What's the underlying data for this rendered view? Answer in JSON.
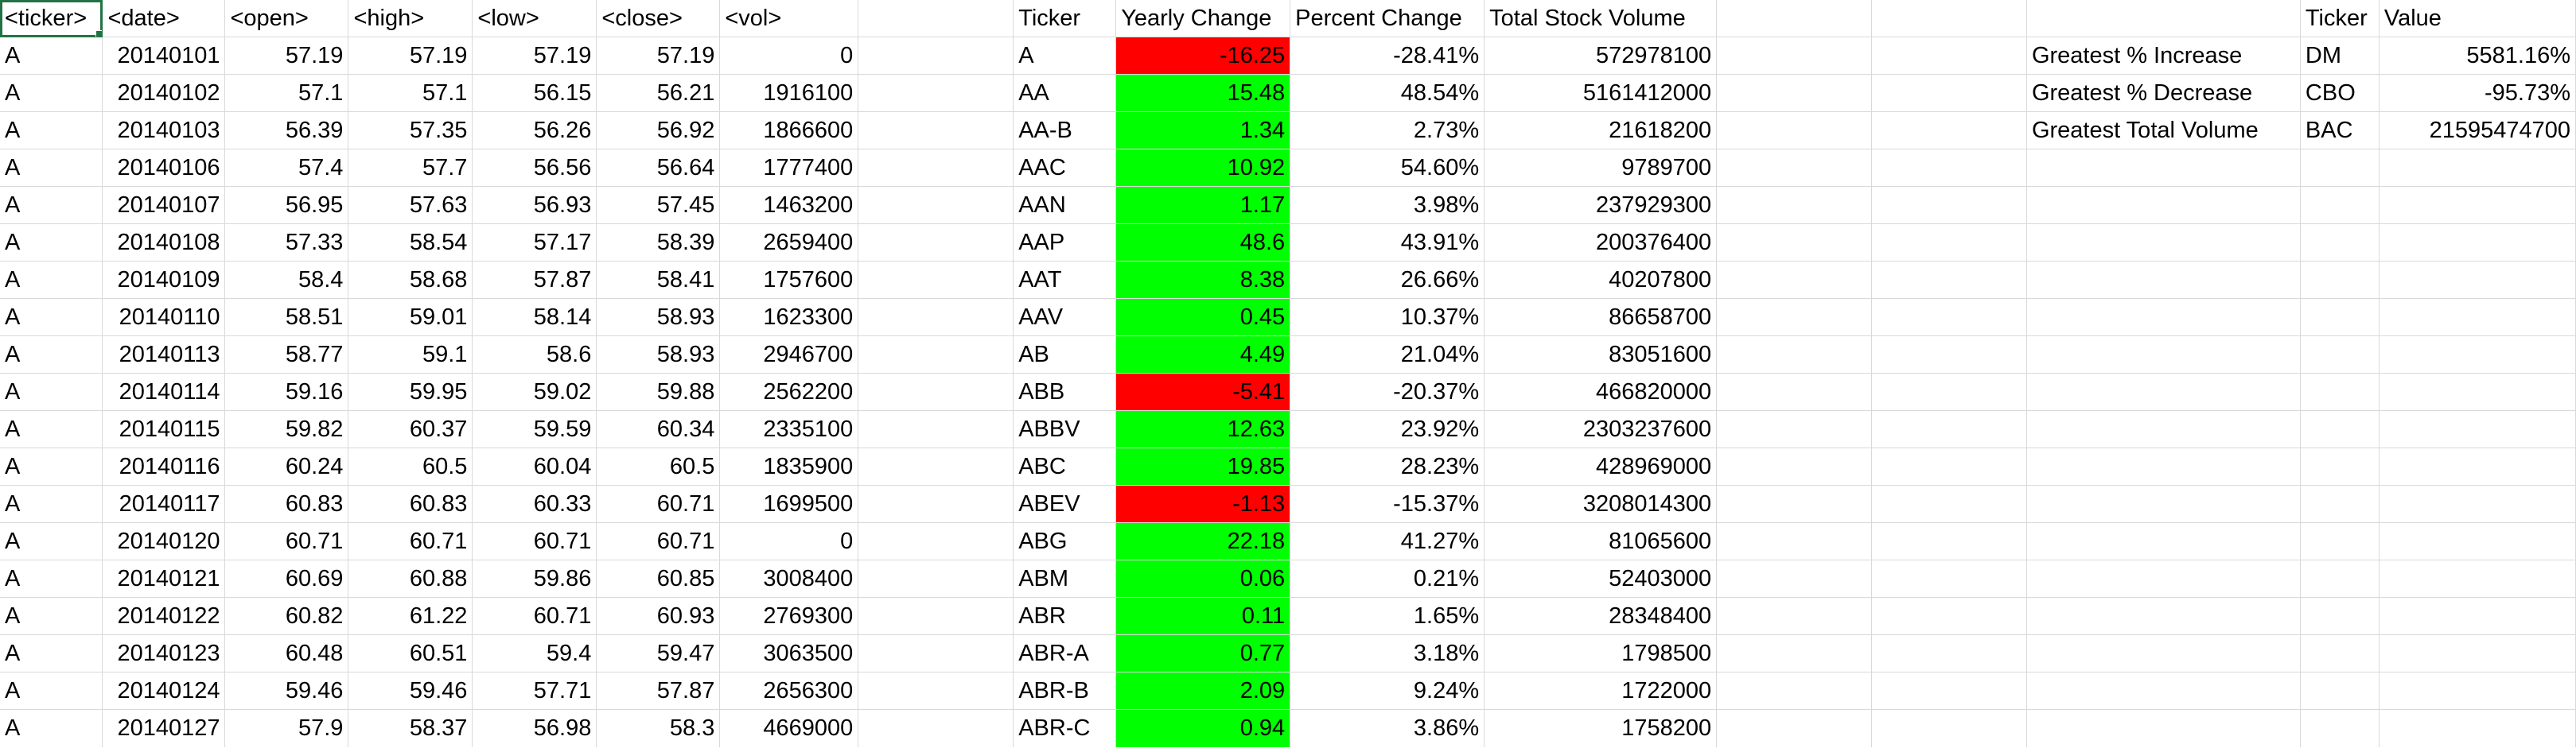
{
  "raw_headers": [
    "<ticker>",
    "<date>",
    "<open>",
    "<high>",
    "<low>",
    "<close>",
    "<vol>"
  ],
  "raw_rows": [
    [
      "A",
      "20140101",
      "57.19",
      "57.19",
      "57.19",
      "57.19",
      "0"
    ],
    [
      "A",
      "20140102",
      "57.1",
      "57.1",
      "56.15",
      "56.21",
      "1916100"
    ],
    [
      "A",
      "20140103",
      "56.39",
      "57.35",
      "56.26",
      "56.92",
      "1866600"
    ],
    [
      "A",
      "20140106",
      "57.4",
      "57.7",
      "56.56",
      "56.64",
      "1777400"
    ],
    [
      "A",
      "20140107",
      "56.95",
      "57.63",
      "56.93",
      "57.45",
      "1463200"
    ],
    [
      "A",
      "20140108",
      "57.33",
      "58.54",
      "57.17",
      "58.39",
      "2659400"
    ],
    [
      "A",
      "20140109",
      "58.4",
      "58.68",
      "57.87",
      "58.41",
      "1757600"
    ],
    [
      "A",
      "20140110",
      "58.51",
      "59.01",
      "58.14",
      "58.93",
      "1623300"
    ],
    [
      "A",
      "20140113",
      "58.77",
      "59.1",
      "58.6",
      "58.93",
      "2946700"
    ],
    [
      "A",
      "20140114",
      "59.16",
      "59.95",
      "59.02",
      "59.88",
      "2562200"
    ],
    [
      "A",
      "20140115",
      "59.82",
      "60.37",
      "59.59",
      "60.34",
      "2335100"
    ],
    [
      "A",
      "20140116",
      "60.24",
      "60.5",
      "60.04",
      "60.5",
      "1835900"
    ],
    [
      "A",
      "20140117",
      "60.83",
      "60.83",
      "60.33",
      "60.71",
      "1699500"
    ],
    [
      "A",
      "20140120",
      "60.71",
      "60.71",
      "60.71",
      "60.71",
      "0"
    ],
    [
      "A",
      "20140121",
      "60.69",
      "60.88",
      "59.86",
      "60.85",
      "3008400"
    ],
    [
      "A",
      "20140122",
      "60.82",
      "61.22",
      "60.71",
      "60.93",
      "2769300"
    ],
    [
      "A",
      "20140123",
      "60.48",
      "60.51",
      "59.4",
      "59.47",
      "3063500"
    ],
    [
      "A",
      "20140124",
      "59.46",
      "59.46",
      "57.71",
      "57.87",
      "2656300"
    ],
    [
      "A",
      "20140127",
      "57.9",
      "58.37",
      "56.98",
      "58.3",
      "4669000"
    ]
  ],
  "summary_headers": [
    "Ticker",
    "Yearly Change",
    "Percent Change",
    "Total Stock Volume"
  ],
  "summary_rows": [
    {
      "ticker": "A",
      "change": "-16.25",
      "pct": "-28.41%",
      "volume": "572978100",
      "status": "negative"
    },
    {
      "ticker": "AA",
      "change": "15.48",
      "pct": "48.54%",
      "volume": "5161412000",
      "status": "positive"
    },
    {
      "ticker": "AA-B",
      "change": "1.34",
      "pct": "2.73%",
      "volume": "21618200",
      "status": "positive"
    },
    {
      "ticker": "AAC",
      "change": "10.92",
      "pct": "54.60%",
      "volume": "9789700",
      "status": "positive"
    },
    {
      "ticker": "AAN",
      "change": "1.17",
      "pct": "3.98%",
      "volume": "237929300",
      "status": "positive"
    },
    {
      "ticker": "AAP",
      "change": "48.6",
      "pct": "43.91%",
      "volume": "200376400",
      "status": "positive"
    },
    {
      "ticker": "AAT",
      "change": "8.38",
      "pct": "26.66%",
      "volume": "40207800",
      "status": "positive"
    },
    {
      "ticker": "AAV",
      "change": "0.45",
      "pct": "10.37%",
      "volume": "86658700",
      "status": "positive"
    },
    {
      "ticker": "AB",
      "change": "4.49",
      "pct": "21.04%",
      "volume": "83051600",
      "status": "positive"
    },
    {
      "ticker": "ABB",
      "change": "-5.41",
      "pct": "-20.37%",
      "volume": "466820000",
      "status": "negative"
    },
    {
      "ticker": "ABBV",
      "change": "12.63",
      "pct": "23.92%",
      "volume": "2303237600",
      "status": "positive"
    },
    {
      "ticker": "ABC",
      "change": "19.85",
      "pct": "28.23%",
      "volume": "428969000",
      "status": "positive"
    },
    {
      "ticker": "ABEV",
      "change": "-1.13",
      "pct": "-15.37%",
      "volume": "3208014300",
      "status": "negative"
    },
    {
      "ticker": "ABG",
      "change": "22.18",
      "pct": "41.27%",
      "volume": "81065600",
      "status": "positive"
    },
    {
      "ticker": "ABM",
      "change": "0.06",
      "pct": "0.21%",
      "volume": "52403000",
      "status": "positive"
    },
    {
      "ticker": "ABR",
      "change": "0.11",
      "pct": "1.65%",
      "volume": "28348400",
      "status": "positive"
    },
    {
      "ticker": "ABR-A",
      "change": "0.77",
      "pct": "3.18%",
      "volume": "1798500",
      "status": "positive"
    },
    {
      "ticker": "ABR-B",
      "change": "2.09",
      "pct": "9.24%",
      "volume": "1722000",
      "status": "positive"
    },
    {
      "ticker": "ABR-C",
      "change": "0.94",
      "pct": "3.86%",
      "volume": "1758200",
      "status": "positive"
    }
  ],
  "greatest_headers": [
    "Ticker",
    "Value"
  ],
  "greatest_rows": [
    {
      "label": "Greatest % Increase",
      "ticker": "DM",
      "value": "5581.16%"
    },
    {
      "label": "Greatest % Decrease",
      "ticker": "CBO",
      "value": "-95.73%"
    },
    {
      "label": "Greatest Total Volume",
      "ticker": "BAC",
      "value": "21595474700"
    }
  ],
  "colors": {
    "positive": "#00ff00",
    "negative": "#ff0000",
    "gridline": "#d9d9d9",
    "selection": "#217346"
  }
}
